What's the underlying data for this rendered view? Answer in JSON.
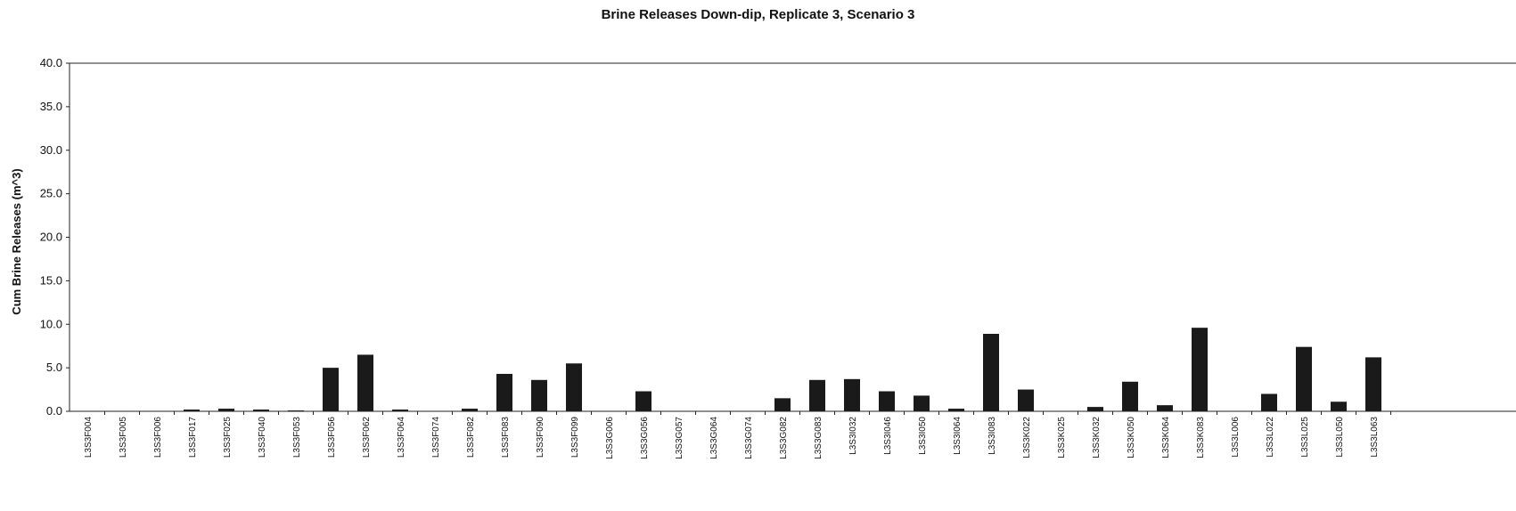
{
  "chart_data": {
    "type": "bar",
    "title": "Brine Releases Down-dip, Replicate 3, Scenario 3",
    "xlabel": "",
    "ylabel": "Cum Brine Releases (m^3)",
    "ylim": [
      0,
      40
    ],
    "yticks": [
      "0.0",
      "5.0",
      "10.0",
      "15.0",
      "20.0",
      "25.0",
      "30.0",
      "35.0",
      "40.0"
    ],
    "grid": false,
    "bar_color": "#1a1a1a",
    "categories": [
      "L3S3F004",
      "L3S3F005",
      "L3S3F006",
      "L3S3F017",
      "L3S3F025",
      "L3S3F040",
      "L3S3F053",
      "L3S3F056",
      "L3S3F062",
      "L3S3F064",
      "L3S3F074",
      "L3S3F082",
      "L3S3F083",
      "L3S3F090",
      "L3S3F099",
      "L3S3G006",
      "L3S3G056",
      "L3S3G057",
      "L3S3G064",
      "L3S3G074",
      "L3S3G082",
      "L3S3G083",
      "L3S3I032",
      "L3S3I046",
      "L3S3I050",
      "L3S3I064",
      "L3S3I083",
      "L3S3K022",
      "L3S3K025",
      "L3S3K032",
      "L3S3K050",
      "L3S3K064",
      "L3S3K083",
      "L3S3L006",
      "L3S3L022",
      "L3S3L025",
      "L3S3L050",
      "L3S3L063"
    ],
    "values": [
      0.0,
      0.05,
      0.0,
      0.2,
      0.3,
      0.2,
      0.1,
      5.0,
      6.5,
      0.2,
      0.0,
      0.3,
      4.3,
      3.6,
      5.5,
      0.0,
      2.3,
      0.0,
      0.05,
      0.0,
      1.5,
      3.6,
      3.7,
      2.3,
      1.8,
      0.3,
      8.9,
      2.5,
      0.05,
      0.5,
      3.4,
      0.7,
      9.6,
      0.0,
      2.0,
      7.4,
      1.1,
      6.2
    ]
  }
}
